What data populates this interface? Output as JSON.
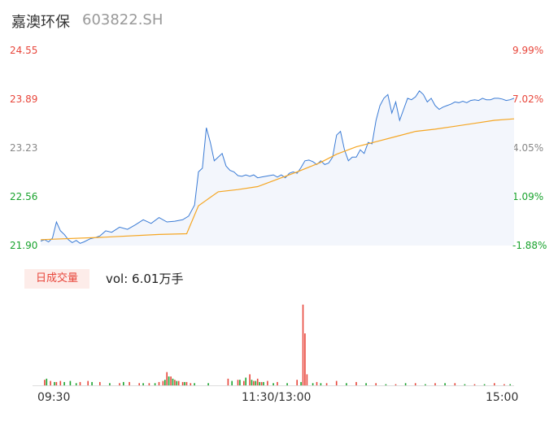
{
  "header": {
    "name": "嘉澳环保",
    "code": "603822.SH"
  },
  "colors": {
    "up": "#e8463b",
    "down": "#1aa32e",
    "flat": "#888888",
    "price_line": "#3a7bd5",
    "avg_line": "#f5a623"
  },
  "volume_panel": {
    "badge": "日成交量",
    "vol_text": "vol: 6.01万手"
  },
  "chart_data": [
    {
      "type": "line",
      "y_ticks_left": [
        "24.55",
        "23.89",
        "23.23",
        "22.56",
        "21.90"
      ],
      "y_ticks_right": [
        "9.99%",
        "7.02%",
        "4.05%",
        "1.09%",
        "-1.88%"
      ],
      "ylim": [
        21.9,
        24.55
      ],
      "x_ticks": [
        "09:30",
        "11:30/13:00",
        "15:00"
      ],
      "series": [
        {
          "x": [
            0,
            2,
            4,
            6,
            8,
            10,
            12,
            14,
            16,
            18,
            20,
            22,
            25,
            28,
            30,
            33,
            36,
            40,
            44,
            48,
            52,
            56,
            60,
            64,
            68,
            72,
            75,
            78,
            80,
            82,
            84,
            86,
            88,
            90,
            92,
            94,
            96,
            98,
            100,
            102,
            104,
            106,
            108,
            110,
            112,
            114,
            116,
            118,
            120,
            122,
            124,
            126,
            128,
            130,
            132,
            134,
            136,
            138,
            140,
            142,
            144,
            146,
            148,
            150,
            152,
            154,
            156,
            158,
            160,
            162,
            164,
            166,
            168,
            170,
            172,
            174,
            176,
            178,
            180,
            182,
            184,
            186,
            188,
            190,
            192,
            194,
            196,
            198,
            200,
            202,
            204,
            206,
            208,
            210,
            212,
            214,
            216,
            218,
            220,
            222,
            224,
            226,
            228,
            230,
            232,
            234,
            236,
            238,
            240
          ],
          "values": [
            21.96,
            21.98,
            21.95,
            22.0,
            22.22,
            22.1,
            22.05,
            21.98,
            21.94,
            21.97,
            21.93,
            21.95,
            21.99,
            22.01,
            22.03,
            22.1,
            22.08,
            22.15,
            22.12,
            22.18,
            22.25,
            22.2,
            22.28,
            22.22,
            22.23,
            22.25,
            22.3,
            22.45,
            22.9,
            22.95,
            23.5,
            23.3,
            23.05,
            23.1,
            23.15,
            22.98,
            22.92,
            22.9,
            22.85,
            22.84,
            22.86,
            22.84,
            22.86,
            22.82,
            22.83,
            22.84,
            22.85,
            22.86,
            22.83,
            22.86,
            22.82,
            22.88,
            22.9,
            22.88,
            22.96,
            23.05,
            23.06,
            23.04,
            23.0,
            23.05,
            23.0,
            23.02,
            23.1,
            23.4,
            23.45,
            23.2,
            23.05,
            23.1,
            23.1,
            23.2,
            23.15,
            23.3,
            23.28,
            23.6,
            23.8,
            23.9,
            23.95,
            23.7,
            23.85,
            23.6,
            23.75,
            23.9,
            23.88,
            23.92,
            24.0,
            23.95,
            23.85,
            23.9,
            23.8,
            23.75,
            23.78,
            23.8,
            23.82,
            23.85,
            23.84,
            23.86,
            23.84,
            23.87,
            23.88,
            23.87,
            23.9,
            23.88,
            23.88,
            23.9,
            23.9,
            23.89,
            23.87,
            23.88,
            23.9
          ]
        },
        {
          "x": [
            0,
            30,
            60,
            74,
            80,
            90,
            100,
            110,
            118,
            130,
            142,
            150,
            160,
            170,
            180,
            190,
            200,
            210,
            220,
            230,
            240
          ],
          "values": [
            21.98,
            22.01,
            22.05,
            22.06,
            22.44,
            22.63,
            22.66,
            22.7,
            22.78,
            22.9,
            23.03,
            23.14,
            23.24,
            23.31,
            23.38,
            23.45,
            23.48,
            23.52,
            23.56,
            23.6,
            23.62
          ]
        }
      ]
    },
    {
      "type": "bar",
      "series": [
        {
          "name": "up",
          "x": [
            2,
            5,
            8,
            10,
            20,
            24,
            30,
            40,
            45,
            50,
            55,
            60,
            62,
            64,
            66,
            68,
            70,
            72,
            74,
            76,
            95,
            100,
            103,
            106,
            108,
            110,
            112,
            115,
            120,
            130,
            135,
            140,
            145,
            150,
            160,
            170,
            180,
            190,
            200,
            210,
            220,
            230,
            235
          ],
          "values": [
            0.05,
            0.04,
            0.03,
            0.04,
            0.03,
            0.04,
            0.03,
            0.02,
            0.03,
            0.02,
            0.02,
            0.03,
            0.04,
            0.12,
            0.08,
            0.05,
            0.04,
            0.03,
            0.03,
            0.02,
            0.06,
            0.05,
            0.04,
            0.1,
            0.04,
            0.06,
            0.03,
            0.04,
            0.03,
            0.05,
            0.1,
            0.03,
            0.02,
            0.04,
            0.03,
            0.02,
            0.01,
            0.02,
            0.02,
            0.02,
            0.01,
            0.02,
            0.01
          ]
        },
        {
          "name": "down",
          "x": [
            3,
            7,
            12,
            15,
            18,
            26,
            35,
            42,
            52,
            58,
            63,
            65,
            67,
            69,
            73,
            78,
            85,
            97,
            101,
            104,
            107,
            109,
            111,
            113,
            118,
            125,
            132,
            138,
            142,
            155,
            165,
            175,
            185,
            195,
            205,
            215,
            225,
            238
          ],
          "values": [
            0.06,
            0.03,
            0.03,
            0.04,
            0.02,
            0.03,
            0.02,
            0.03,
            0.02,
            0.02,
            0.05,
            0.08,
            0.06,
            0.04,
            0.03,
            0.02,
            0.02,
            0.04,
            0.05,
            0.07,
            0.05,
            0.04,
            0.03,
            0.03,
            0.02,
            0.02,
            0.03,
            0.02,
            0.02,
            0.02,
            0.02,
            0.01,
            0.02,
            0.01,
            0.02,
            0.01,
            0.01,
            0.01
          ]
        }
      ],
      "highlight_up": [
        {
          "x": 133,
          "values": [
            0.73
          ]
        },
        {
          "x": 134,
          "values": [
            0.47
          ]
        }
      ],
      "ylim": [
        0,
        0.75
      ]
    }
  ]
}
